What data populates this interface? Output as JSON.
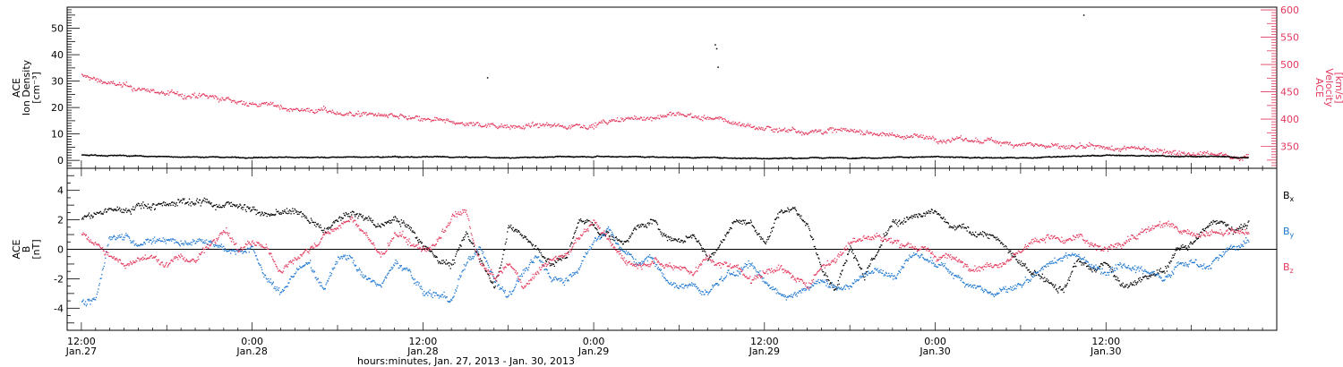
{
  "colors": {
    "black": "#000000",
    "pink": "#e33a5e",
    "blue": "#1f78d1",
    "axis_right": "#e33a5e"
  },
  "chart_data": [
    {
      "type": "scatter",
      "panel": "top",
      "left_axis": {
        "label_lines": [
          "ACE",
          "Ion Density",
          "[cm⁻³]"
        ],
        "ylim": [
          -3,
          58
        ],
        "ticks": [
          0,
          10,
          20,
          30,
          40,
          50
        ]
      },
      "right_axis": {
        "label_lines": [
          "ACE",
          "Velocity",
          "[km/s]"
        ],
        "ylim": [
          310,
          605
        ],
        "ticks": [
          350,
          400,
          450,
          500,
          550,
          600
        ]
      },
      "xlim_hours": [
        -1,
        84
      ],
      "series": [
        {
          "axis": "left",
          "color": "#000000",
          "x": [
            0,
            6,
            12,
            18,
            24,
            30,
            36,
            42,
            48,
            54,
            60,
            66,
            72,
            78,
            82
          ],
          "y": [
            2.3,
            1.6,
            1.3,
            1.4,
            1.5,
            1.2,
            1.8,
            1.4,
            1.0,
            1.2,
            1.5,
            1.1,
            2.1,
            1.8,
            1.2
          ]
        },
        {
          "axis": "right",
          "color": "#e33a5e",
          "x": [
            0,
            3,
            6,
            9,
            12,
            15,
            18,
            21,
            24,
            27,
            30,
            33,
            36,
            39,
            42,
            45,
            48,
            51,
            54,
            57,
            60,
            63,
            66,
            69,
            72,
            75,
            78,
            81,
            82
          ],
          "y": [
            480,
            460,
            448,
            440,
            430,
            420,
            413,
            408,
            398,
            392,
            390,
            388,
            392,
            402,
            410,
            398,
            384,
            380,
            380,
            372,
            366,
            360,
            358,
            348,
            346,
            346,
            340,
            335,
            333
          ]
        }
      ],
      "outliers": {
        "axis": "left",
        "x": [
          28.5,
          44.5,
          44.6,
          44.7,
          70.4
        ],
        "y": [
          31.5,
          44,
          42.5,
          35.5,
          55.2
        ]
      }
    },
    {
      "type": "scatter",
      "panel": "bottom",
      "left_axis": {
        "label_lines": [
          "ACE",
          "B",
          "[nT]"
        ],
        "ylim": [
          -5.5,
          5.5
        ],
        "ticks": [
          -4,
          -2,
          0,
          2,
          4
        ]
      },
      "xlim_hours": [
        -1,
        84
      ],
      "x_ticks": [
        {
          "h": 0,
          "time": "12:00",
          "date": "Jan.27"
        },
        {
          "h": 12,
          "time": "0:00",
          "date": "Jan.28"
        },
        {
          "h": 24,
          "time": "12:00",
          "date": "Jan.28"
        },
        {
          "h": 36,
          "time": "0:00",
          "date": "Jan.29"
        },
        {
          "h": 48,
          "time": "12:00",
          "date": "Jan.29"
        },
        {
          "h": 60,
          "time": "0:00",
          "date": "Jan.30"
        },
        {
          "h": 72,
          "time": "12:00",
          "date": "Jan.30"
        }
      ],
      "xlabel": "hours:minutes, Jan. 27, 2013 - Jan. 30, 2013",
      "legend_position": "right",
      "series": [
        {
          "name": "Bx",
          "label": "B",
          "sub": "x",
          "color": "#000000",
          "x": [
            0,
            1,
            2,
            3,
            4,
            5,
            6,
            7,
            8,
            9,
            10,
            11,
            12,
            13,
            14,
            15,
            16,
            17,
            18,
            19,
            20,
            21,
            22,
            23,
            24,
            25,
            26,
            27,
            28,
            29,
            30,
            31,
            32,
            33,
            34,
            35,
            36,
            37,
            38,
            39,
            40,
            41,
            42,
            43,
            44,
            45,
            46,
            47,
            48,
            49,
            50,
            51,
            52,
            53,
            54,
            55,
            56,
            57,
            58,
            59,
            60,
            61,
            62,
            63,
            64,
            65,
            66,
            67,
            68,
            69,
            70,
            71,
            72,
            73,
            74,
            75,
            76,
            77,
            78,
            79,
            80,
            81,
            82
          ],
          "y": [
            2.2,
            2.4,
            2.6,
            2.8,
            3.0,
            3.1,
            3.2,
            3.3,
            3.3,
            3.2,
            3.1,
            3.0,
            2.9,
            2.2,
            2.5,
            2.6,
            2.0,
            1.2,
            2.0,
            2.4,
            2.1,
            1.6,
            2.2,
            1.5,
            0.5,
            -0.5,
            -1.0,
            1.0,
            -0.5,
            -2.5,
            1.5,
            1.0,
            0.0,
            -1.0,
            -0.5,
            2.0,
            1.5,
            1.0,
            0.5,
            1.5,
            2.0,
            1.0,
            0.5,
            1.0,
            -0.5,
            0.5,
            2.0,
            1.8,
            0.5,
            2.5,
            3.0,
            1.5,
            -1.0,
            -2.5,
            0.5,
            -1.5,
            0.0,
            1.8,
            2.0,
            2.2,
            2.5,
            1.5,
            1.3,
            1.2,
            1.0,
            0.0,
            -1.2,
            -1.5,
            -2.0,
            -2.5,
            -0.5,
            -1.5,
            -1.0,
            -2.5,
            -2.0,
            -1.8,
            -1.5,
            0.0,
            0.5,
            1.5,
            2.0,
            1.5,
            1.8
          ]
        },
        {
          "name": "By",
          "label": "B",
          "sub": "y",
          "color": "#1f78d1",
          "x": [
            0,
            1,
            2,
            3,
            4,
            5,
            6,
            7,
            8,
            9,
            10,
            11,
            12,
            13,
            14,
            15,
            16,
            17,
            18,
            19,
            20,
            21,
            22,
            23,
            24,
            25,
            26,
            27,
            28,
            29,
            30,
            31,
            32,
            33,
            34,
            35,
            36,
            37,
            38,
            39,
            40,
            41,
            42,
            43,
            44,
            45,
            46,
            47,
            48,
            49,
            50,
            51,
            52,
            53,
            54,
            55,
            56,
            57,
            58,
            59,
            60,
            61,
            62,
            63,
            64,
            65,
            66,
            67,
            68,
            69,
            70,
            71,
            72,
            73,
            74,
            75,
            76,
            77,
            78,
            79,
            80,
            81,
            82
          ],
          "y": [
            -3.5,
            -3.2,
            1.0,
            0.8,
            0.5,
            0.8,
            0.7,
            0.5,
            0.6,
            0.8,
            0.2,
            0.0,
            0.0,
            -2.0,
            -3.0,
            -1.5,
            -1.0,
            -2.5,
            -0.5,
            -0.5,
            -2.0,
            -2.5,
            -1.0,
            -1.5,
            -3.0,
            -3.0,
            -3.5,
            -1.0,
            0.0,
            -2.0,
            -3.0,
            -1.5,
            -0.5,
            -2.0,
            -2.0,
            -1.0,
            0.5,
            1.5,
            0.0,
            -1.0,
            -0.5,
            -2.0,
            -2.5,
            -2.5,
            -3.0,
            -2.0,
            -1.5,
            -1.0,
            -2.0,
            -3.0,
            -3.0,
            -2.5,
            -2.0,
            -2.5,
            -2.5,
            -1.5,
            -1.5,
            -1.8,
            -0.5,
            -0.5,
            -1.0,
            -1.5,
            -2.0,
            -2.5,
            -3.0,
            -2.8,
            -2.5,
            -2.0,
            -1.0,
            -0.5,
            -0.5,
            -1.0,
            -1.5,
            -0.8,
            -1.2,
            -1.5,
            -1.8,
            -1.0,
            -0.8,
            -1.0,
            -0.5,
            0.2,
            0.5
          ]
        },
        {
          "name": "Bz",
          "label": "B",
          "sub": "z",
          "color": "#e33a5e",
          "x": [
            0,
            1,
            2,
            3,
            4,
            5,
            6,
            7,
            8,
            9,
            10,
            11,
            12,
            13,
            14,
            15,
            16,
            17,
            18,
            19,
            20,
            21,
            22,
            23,
            24,
            25,
            26,
            27,
            28,
            29,
            30,
            31,
            32,
            33,
            34,
            35,
            36,
            37,
            38,
            39,
            40,
            41,
            42,
            43,
            44,
            45,
            46,
            47,
            48,
            49,
            50,
            51,
            52,
            53,
            54,
            55,
            56,
            57,
            58,
            59,
            60,
            61,
            62,
            63,
            64,
            65,
            66,
            67,
            68,
            69,
            70,
            71,
            72,
            73,
            74,
            75,
            76,
            77,
            78,
            79,
            80,
            81,
            82
          ],
          "y": [
            1.0,
            0.5,
            -0.5,
            -1.0,
            -0.5,
            -0.5,
            -1.0,
            -0.5,
            -0.8,
            0.5,
            1.5,
            0.0,
            0.5,
            0.0,
            -1.5,
            -0.5,
            0.0,
            1.0,
            1.5,
            2.0,
            1.0,
            -0.5,
            1.0,
            0.5,
            0.0,
            0.5,
            2.0,
            2.5,
            -1.0,
            -2.0,
            -1.0,
            -2.5,
            -1.5,
            -0.5,
            -0.5,
            1.0,
            2.0,
            0.5,
            -0.5,
            -1.0,
            -0.5,
            -1.0,
            -1.0,
            -1.5,
            -0.5,
            -1.0,
            -1.0,
            -2.0,
            -1.5,
            -1.0,
            -2.0,
            -2.5,
            -1.0,
            -0.5,
            0.5,
            1.0,
            1.0,
            0.5,
            0.5,
            0.0,
            -0.5,
            -0.5,
            -1.0,
            -1.0,
            -1.0,
            -0.5,
            0.0,
            0.5,
            1.0,
            0.5,
            0.8,
            0.3,
            0.0,
            0.5,
            1.0,
            1.5,
            1.8,
            1.3,
            1.0,
            1.2,
            1.0,
            1.3,
            1.0
          ]
        }
      ]
    }
  ]
}
